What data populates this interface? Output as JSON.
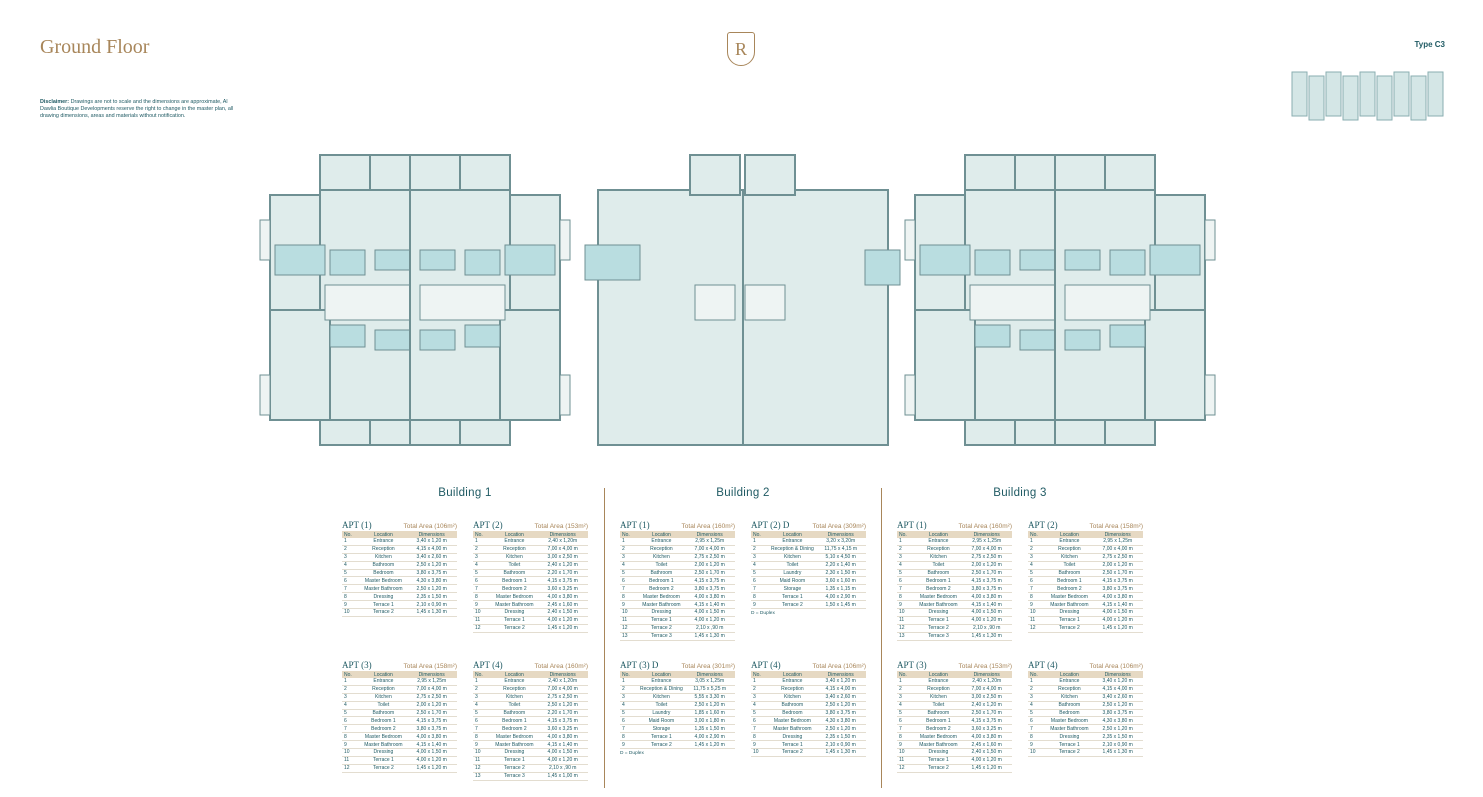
{
  "header": {
    "title": "Ground Floor",
    "logo": "R",
    "type": "Type C3"
  },
  "disclaimer": {
    "label": "Disclaimer:",
    "text": "Drawings are not to scale and the dimensions are approximate, Al Dawlia Boutique Developments reserve the right to change in the master plan, all drawing dimensions, areas and materials without notification."
  },
  "table_headers": [
    "No.",
    "Location",
    "Dimensions"
  ],
  "buildings": [
    {
      "name": "Building 1",
      "apartments": [
        {
          "title": "APT (1)",
          "area": "Total Area (106m²)",
          "rows": [
            [
              "1",
              "Entrance",
              "3,40 x 1,20 m"
            ],
            [
              "2",
              "Reception",
              "4,15 x 4,00 m"
            ],
            [
              "3",
              "Kitchen",
              "3,40 x 2,60 m"
            ],
            [
              "4",
              "Bathroom",
              "2,50 x 1,20 m"
            ],
            [
              "5",
              "Bedroom",
              "3,80 x 3,75 m"
            ],
            [
              "6",
              "Master Bedroom",
              "4,30 x 3,80 m"
            ],
            [
              "7",
              "Master Bathroom",
              "2,50 x 1,20 m"
            ],
            [
              "8",
              "Dressing",
              "2,35 x 1,50 m"
            ],
            [
              "9",
              "Terrace 1",
              "2,10 x 0,90 m"
            ],
            [
              "10",
              "Terrace 2",
              "1,45 x 1,30 m"
            ]
          ]
        },
        {
          "title": "APT (2)",
          "area": "Total Area (153m²)",
          "rows": [
            [
              "1",
              "Entrance",
              "2,40 x 1,20m"
            ],
            [
              "2",
              "Reception",
              "7,00 x 4,00 m"
            ],
            [
              "3",
              "Kitchen",
              "3,00 x 2,50 m"
            ],
            [
              "4",
              "Toilet",
              "2,40 x 1,20 m"
            ],
            [
              "5",
              "Bathroom",
              "2,20 x 1,70 m"
            ],
            [
              "6",
              "Bedroom 1",
              "4,15 x 3,75 m"
            ],
            [
              "7",
              "Bedroom 2",
              "3,60 x 3,25 m"
            ],
            [
              "8",
              "Master Bedroom",
              "4,00 x 3,80 m"
            ],
            [
              "9",
              "Master Bathroom",
              "2,45 x 1,60 m"
            ],
            [
              "10",
              "Dressing",
              "2,40 x 1,50 m"
            ],
            [
              "11",
              "Terrace 1",
              "4,00 x 1,20 m"
            ],
            [
              "12",
              "Terrace 2",
              "1,45 x 1,20 m"
            ]
          ]
        },
        {
          "title": "APT (3)",
          "area": "Total Area (158m²)",
          "rows": [
            [
              "1",
              "Entrance",
              "2,95 x 1,25m"
            ],
            [
              "2",
              "Reception",
              "7,00 x 4,00 m"
            ],
            [
              "3",
              "Kitchen",
              "2,75 x 2,50 m"
            ],
            [
              "4",
              "Toilet",
              "2,00 x 1,20 m"
            ],
            [
              "5",
              "Bathroom",
              "2,50 x 1,70 m"
            ],
            [
              "6",
              "Bedroom 1",
              "4,15 x 3,75 m"
            ],
            [
              "7",
              "Bedroom 2",
              "3,80 x 3,75 m"
            ],
            [
              "8",
              "Master Bedroom",
              "4,00 x 3,80 m"
            ],
            [
              "9",
              "Master Bathroom",
              "4,15 x 1,40 m"
            ],
            [
              "10",
              "Dressing",
              "4,00 x 1,50 m"
            ],
            [
              "11",
              "Terrace 1",
              "4,00 x 1,20 m"
            ],
            [
              "12",
              "Terrace 2",
              "1,45 x 1,20 m"
            ]
          ]
        },
        {
          "title": "APT (4)",
          "area": "Total Area (160m²)",
          "rows": [
            [
              "1",
              "Entrance",
              "2,40 x 1,20m"
            ],
            [
              "2",
              "Reception",
              "7,00 x 4,00 m"
            ],
            [
              "3",
              "Kitchen",
              "2,75 x 2,50 m"
            ],
            [
              "4",
              "Toilet",
              "2,50 x 1,20 m"
            ],
            [
              "5",
              "Bathroom",
              "2,20 x 1,70 m"
            ],
            [
              "6",
              "Bedroom 1",
              "4,15 x 3,75 m"
            ],
            [
              "7",
              "Bedroom 2",
              "3,60 x 3,25 m"
            ],
            [
              "8",
              "Master Bedroom",
              "4,00 x 3,80 m"
            ],
            [
              "9",
              "Master Bathroom",
              "4,15 x 1,40 m"
            ],
            [
              "10",
              "Dressing",
              "4,00 x 1,50 m"
            ],
            [
              "11",
              "Terrace 1",
              "4,00 x 1,20 m"
            ],
            [
              "12",
              "Terrace 2",
              "2,10 x ,90 m"
            ],
            [
              "13",
              "Terrace 3",
              "1,45 x 1,00 m"
            ]
          ]
        }
      ]
    },
    {
      "name": "Building 2",
      "apartments": [
        {
          "title": "APT (1)",
          "area": "Total Area (160m²)",
          "rows": [
            [
              "1",
              "Entrance",
              "2,95 x 1,25m"
            ],
            [
              "2",
              "Reception",
              "7,00 x 4,00 m"
            ],
            [
              "3",
              "Kitchen",
              "2,75 x 2,50 m"
            ],
            [
              "4",
              "Toilet",
              "2,00 x 1,20 m"
            ],
            [
              "5",
              "Bathroom",
              "2,50 x 1,70 m"
            ],
            [
              "6",
              "Bedroom 1",
              "4,15 x 3,75 m"
            ],
            [
              "7",
              "Bedroom 2",
              "3,80 x 3,75 m"
            ],
            [
              "8",
              "Master Bedroom",
              "4,00 x 3,80 m"
            ],
            [
              "9",
              "Master Bathroom",
              "4,15 x 1,40 m"
            ],
            [
              "10",
              "Dressing",
              "4,00 x 1,50 m"
            ],
            [
              "11",
              "Terrace 1",
              "4,00 x 1,20 m"
            ],
            [
              "12",
              "Terrace 2",
              "2,10 x ,90 m"
            ],
            [
              "13",
              "Terrace 3",
              "1,45 x 1,30 m"
            ]
          ]
        },
        {
          "title": "APT (2) D",
          "area": "Total Area (309m²)",
          "rows": [
            [
              "1",
              "Entrance",
              "3,20 x 3,20m"
            ],
            [
              "2",
              "Reception & Dining",
              "11,75 x 4,15 m"
            ],
            [
              "3",
              "Kitchen",
              "5,10 x 4,50 m"
            ],
            [
              "4",
              "Toilet",
              "2,20 x 1,40 m"
            ],
            [
              "5",
              "Laundry",
              "2,30 x 1,50 m"
            ],
            [
              "6",
              "Maid Room",
              "3,60 x 1,60 m"
            ],
            [
              "7",
              "Storage",
              "1,35 x 1,15 m"
            ],
            [
              "8",
              "Terrace 1",
              "4,00 x 2,90 m"
            ],
            [
              "9",
              "Terrace 2",
              "1,50 x 1,45 m"
            ]
          ],
          "note": "D = Duplex"
        },
        {
          "title": "APT (3) D",
          "area": "Total Area (301m²)",
          "rows": [
            [
              "1",
              "Entrance",
              "3,05 x 1,25m"
            ],
            [
              "2",
              "Reception & Dining",
              "11,75 x 5,25 m"
            ],
            [
              "3",
              "Kitchen",
              "5,55 x 3,30 m"
            ],
            [
              "4",
              "Toilet",
              "2,50 x 1,20 m"
            ],
            [
              "5",
              "Laundry",
              "1,85 x 1,60 m"
            ],
            [
              "6",
              "Maid Room",
              "3,00 x 1,80 m"
            ],
            [
              "7",
              "Storage",
              "1,35 x 1,50 m"
            ],
            [
              "8",
              "Terrace 1",
              "4,00 x 2,90 m"
            ],
            [
              "9",
              "Terrace 2",
              "1,45 x 1,20 m"
            ]
          ],
          "note": "D = Duplex"
        },
        {
          "title": "APT (4)",
          "area": "Total Area (106m²)",
          "rows": [
            [
              "1",
              "Entrance",
              "3,40 x 1,20 m"
            ],
            [
              "2",
              "Reception",
              "4,15 x 4,00 m"
            ],
            [
              "3",
              "Kitchen",
              "3,40 x 2,60 m"
            ],
            [
              "4",
              "Bathroom",
              "2,50 x 1,20 m"
            ],
            [
              "5",
              "Bedroom",
              "3,80 x 3,75 m"
            ],
            [
              "6",
              "Master Bedroom",
              "4,30 x 3,80 m"
            ],
            [
              "7",
              "Master Bathroom",
              "2,50 x 1,20 m"
            ],
            [
              "8",
              "Dressing",
              "2,35 x 1,50 m"
            ],
            [
              "9",
              "Terrace 1",
              "2,10 x 0,90 m"
            ],
            [
              "10",
              "Terrace 2",
              "1,45 x 1,30 m"
            ]
          ]
        }
      ]
    },
    {
      "name": "Building 3",
      "apartments": [
        {
          "title": "APT (1)",
          "area": "Total Area (160m²)",
          "rows": [
            [
              "1",
              "Entrance",
              "2,95 x 1,25m"
            ],
            [
              "2",
              "Reception",
              "7,00 x 4,00 m"
            ],
            [
              "3",
              "Kitchen",
              "2,75 x 2,50 m"
            ],
            [
              "4",
              "Toilet",
              "2,00 x 1,20 m"
            ],
            [
              "5",
              "Bathroom",
              "2,50 x 1,70 m"
            ],
            [
              "6",
              "Bedroom 1",
              "4,15 x 3,75 m"
            ],
            [
              "7",
              "Bedroom 2",
              "3,80 x 3,75 m"
            ],
            [
              "8",
              "Master Bedroom",
              "4,00 x 3,80 m"
            ],
            [
              "9",
              "Master Bathroom",
              "4,15 x 1,40 m"
            ],
            [
              "10",
              "Dressing",
              "4,00 x 1,50 m"
            ],
            [
              "11",
              "Terrace 1",
              "4,00 x 1,20 m"
            ],
            [
              "12",
              "Terrace 2",
              "2,10 x ,90 m"
            ],
            [
              "13",
              "Terrace 3",
              "1,45 x 1,30 m"
            ]
          ]
        },
        {
          "title": "APT (2)",
          "area": "Total Area (158m²)",
          "rows": [
            [
              "1",
              "Entrance",
              "2,95 x 1,25m"
            ],
            [
              "2",
              "Reception",
              "7,00 x 4,00 m"
            ],
            [
              "3",
              "Kitchen",
              "2,75 x 2,50 m"
            ],
            [
              "4",
              "Toilet",
              "2,00 x 1,20 m"
            ],
            [
              "5",
              "Bathroom",
              "2,50 x 1,70 m"
            ],
            [
              "6",
              "Bedroom 1",
              "4,15 x 3,75 m"
            ],
            [
              "7",
              "Bedroom 2",
              "3,80 x 3,75 m"
            ],
            [
              "8",
              "Master Bedroom",
              "4,00 x 3,80 m"
            ],
            [
              "9",
              "Master Bathroom",
              "4,15 x 1,40 m"
            ],
            [
              "10",
              "Dressing",
              "4,00 x 1,50 m"
            ],
            [
              "11",
              "Terrace 1",
              "4,00 x 1,20 m"
            ],
            [
              "12",
              "Terrace 2",
              "1,45 x 1,20 m"
            ]
          ]
        },
        {
          "title": "APT (3)",
          "area": "Total Area (153m²)",
          "rows": [
            [
              "1",
              "Entrance",
              "2,40 x 1,20m"
            ],
            [
              "2",
              "Reception",
              "7,00 x 4,00 m"
            ],
            [
              "3",
              "Kitchen",
              "3,00 x 2,50 m"
            ],
            [
              "4",
              "Toilet",
              "2,40 x 1,20 m"
            ],
            [
              "5",
              "Bathroom",
              "2,50 x 1,70 m"
            ],
            [
              "6",
              "Bedroom 1",
              "4,15 x 3,75 m"
            ],
            [
              "7",
              "Bedroom 2",
              "3,60 x 3,25 m"
            ],
            [
              "8",
              "Master Bedroom",
              "4,00 x 3,80 m"
            ],
            [
              "9",
              "Master Bathroom",
              "2,45 x 1,60 m"
            ],
            [
              "10",
              "Dressing",
              "2,40 x 1,50 m"
            ],
            [
              "11",
              "Terrace 1",
              "4,00 x 1,20 m"
            ],
            [
              "12",
              "Terrace 2",
              "1,45 x 1,20 m"
            ]
          ]
        },
        {
          "title": "APT (4)",
          "area": "Total Area (106m²)",
          "rows": [
            [
              "1",
              "Entrance",
              "3,40 x 1,20 m"
            ],
            [
              "2",
              "Reception",
              "4,15 x 4,00 m"
            ],
            [
              "3",
              "Kitchen",
              "3,40 x 2,60 m"
            ],
            [
              "4",
              "Bathroom",
              "2,50 x 1,20 m"
            ],
            [
              "5",
              "Bedroom",
              "3,80 x 3,75 m"
            ],
            [
              "6",
              "Master Bedroom",
              "4,30 x 3,80 m"
            ],
            [
              "7",
              "Master Bathroom",
              "2,50 x 1,20 m"
            ],
            [
              "8",
              "Dressing",
              "2,35 x 1,50 m"
            ],
            [
              "9",
              "Terrace 1",
              "2,10 x 0,90 m"
            ],
            [
              "10",
              "Terrace 2",
              "1,45 x 1,30 m"
            ]
          ]
        }
      ]
    }
  ]
}
